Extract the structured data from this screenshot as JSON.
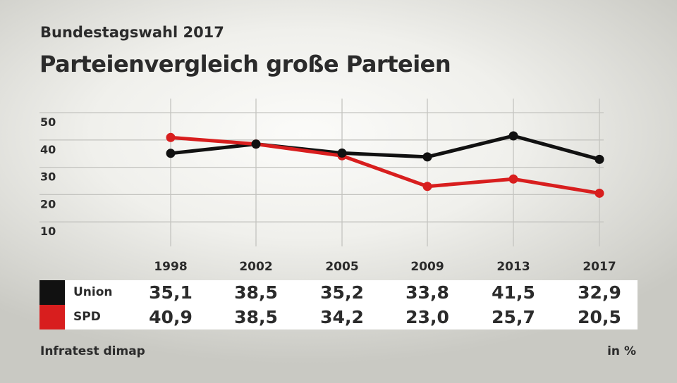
{
  "subtitle": "Bundestagswahl 2017",
  "title": "Parteienvergleich große Parteien",
  "source": "Infratest dimap",
  "unit": "in %",
  "chart_data": {
    "type": "line",
    "categories": [
      "1998",
      "2002",
      "2005",
      "2009",
      "2013",
      "2017"
    ],
    "yticks": [
      "50",
      "40",
      "30",
      "20",
      "10"
    ],
    "ylim": [
      0,
      50
    ],
    "grid": true,
    "series": [
      {
        "name": "Union",
        "color": "#111111",
        "values": [
          35.1,
          38.5,
          35.2,
          33.8,
          41.5,
          32.9
        ],
        "labels": [
          "35,1",
          "38,5",
          "35,2",
          "33,8",
          "41,5",
          "32,9"
        ]
      },
      {
        "name": "SPD",
        "color": "#d81e1e",
        "values": [
          40.9,
          38.5,
          34.2,
          23.0,
          25.7,
          20.5
        ],
        "labels": [
          "40,9",
          "38,5",
          "34,2",
          "23,0",
          "25,7",
          "20,5"
        ]
      }
    ]
  }
}
